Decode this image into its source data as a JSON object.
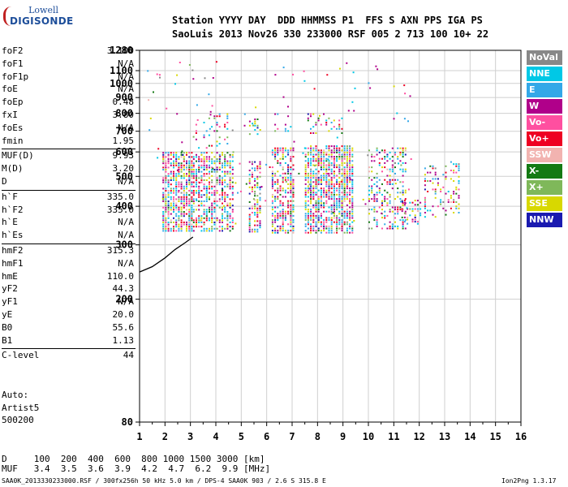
{
  "logo": {
    "line1": "Lowell",
    "line2": "DIGISONDE"
  },
  "header": {
    "row1": "Station YYYY DAY  DDD HHMMSS P1  FFS S AXN PPS IGA PS",
    "row2": "SaoLuis 2013 Nov26 330 233000 RSF 005 2 713 100 10+ 22"
  },
  "params": [
    {
      "group": [
        {
          "name": "foF2",
          "value": "3.100"
        },
        {
          "name": "foF1",
          "value": "N/A"
        },
        {
          "name": "foF1p",
          "value": "N/A"
        },
        {
          "name": "foE",
          "value": "N/A"
        },
        {
          "name": "foEp",
          "value": "0.48"
        },
        {
          "name": "fxI",
          "value": "3.80"
        },
        {
          "name": "foEs",
          "value": "N/A"
        },
        {
          "name": "fmin",
          "value": "1.95"
        }
      ]
    },
    {
      "group": [
        {
          "name": "MUF(D)",
          "value": "9.93"
        },
        {
          "name": "M(D)",
          "value": "3.20"
        },
        {
          "name": "D",
          "value": "N/A"
        }
      ]
    },
    {
      "group": [
        {
          "name": "h`F",
          "value": "335.0"
        },
        {
          "name": "h`F2",
          "value": "335.0"
        },
        {
          "name": "h`E",
          "value": "N/A"
        },
        {
          "name": "h`Es",
          "value": "N/A"
        }
      ]
    },
    {
      "group": [
        {
          "name": "hmF2",
          "value": "315.3"
        },
        {
          "name": "hmF1",
          "value": "N/A"
        },
        {
          "name": "hmE",
          "value": "110.0"
        },
        {
          "name": "yF2",
          "value": "44.3"
        },
        {
          "name": "yF1",
          "value": "N/A"
        },
        {
          "name": "yE",
          "value": "20.0"
        },
        {
          "name": "B0",
          "value": "55.6"
        },
        {
          "name": "B1",
          "value": "1.13"
        }
      ]
    },
    {
      "group": [
        {
          "name": "C-level",
          "value": "44"
        }
      ]
    }
  ],
  "auto": {
    "line1": "Auto:",
    "line2": "Artist5",
    "line3": "500200"
  },
  "legend": [
    {
      "label": "NoVal",
      "color": "#888888"
    },
    {
      "label": "NNE",
      "color": "#00c8e6"
    },
    {
      "label": "E",
      "color": "#33a8e8"
    },
    {
      "label": "W",
      "color": "#b0008a"
    },
    {
      "label": "Vo-",
      "color": "#ff4fa0"
    },
    {
      "label": "Vo+",
      "color": "#ee0022"
    },
    {
      "label": "SSW",
      "color": "#f2b3b0"
    },
    {
      "label": "X-",
      "color": "#147a14"
    },
    {
      "label": "X+",
      "color": "#7fb85a"
    },
    {
      "label": "SSE",
      "color": "#d8d800"
    },
    {
      "label": "NNW",
      "color": "#1a1ab0"
    }
  ],
  "footer": {
    "d_line": "D     100  200  400  600  800 1000 1500 3000 [km]",
    "muf_line": "MUF   3.4  3.5  3.6  3.9  4.2  4.7  6.2  9.9 [MHz]",
    "file_line": "SAA0K_2013330233000.RSF / 300fx256h 50 kHz 5.0 km / DPS-4 SAA0K 903 / 2.6 S 315.8 E",
    "version": "Ion2Png 1.3.17"
  },
  "chart_data": {
    "type": "scatter",
    "title": "",
    "xlabel": "",
    "ylabel": "",
    "xlim": [
      1,
      16
    ],
    "ylim": [
      80,
      1280
    ],
    "yscale": "log",
    "xticks": [
      1,
      2,
      3,
      4,
      5,
      6,
      7,
      8,
      9,
      10,
      11,
      12,
      13,
      14,
      15,
      16
    ],
    "yticks": [
      80,
      200,
      300,
      400,
      500,
      600,
      700,
      800,
      900,
      1000,
      1100,
      1280
    ],
    "grid": true,
    "legend_position": "right",
    "clusters": [
      {
        "x": [
          1.9,
          3.1
        ],
        "y": [
          330,
          600
        ],
        "density": 0.75
      },
      {
        "x": [
          3.1,
          4.7
        ],
        "y": [
          330,
          600
        ],
        "density": 0.6
      },
      {
        "x": [
          3.2,
          4.5
        ],
        "y": [
          620,
          800
        ],
        "density": 0.18
      },
      {
        "x": [
          5.3,
          5.8
        ],
        "y": [
          330,
          560
        ],
        "density": 0.55
      },
      {
        "x": [
          5.1,
          5.8
        ],
        "y": [
          680,
          770
        ],
        "density": 0.3
      },
      {
        "x": [
          6.2,
          7.1
        ],
        "y": [
          330,
          620
        ],
        "density": 0.6
      },
      {
        "x": [
          6.3,
          7.0
        ],
        "y": [
          700,
          800
        ],
        "density": 0.3
      },
      {
        "x": [
          7.5,
          9.4
        ],
        "y": [
          330,
          630
        ],
        "density": 0.75
      },
      {
        "x": [
          7.6,
          9.0
        ],
        "y": [
          690,
          800
        ],
        "density": 0.25
      },
      {
        "x": [
          10.0,
          11.5
        ],
        "y": [
          340,
          620
        ],
        "density": 0.35
      },
      {
        "x": [
          11.3,
          12.1
        ],
        "y": [
          350,
          420
        ],
        "density": 0.35
      },
      {
        "x": [
          12.2,
          13.6
        ],
        "y": [
          370,
          560
        ],
        "density": 0.25
      }
    ],
    "trace": {
      "x": [
        1.0,
        1.5,
        2.0,
        2.4,
        2.8,
        3.1
      ],
      "y": [
        245,
        255,
        272,
        290,
        305,
        318
      ]
    }
  }
}
